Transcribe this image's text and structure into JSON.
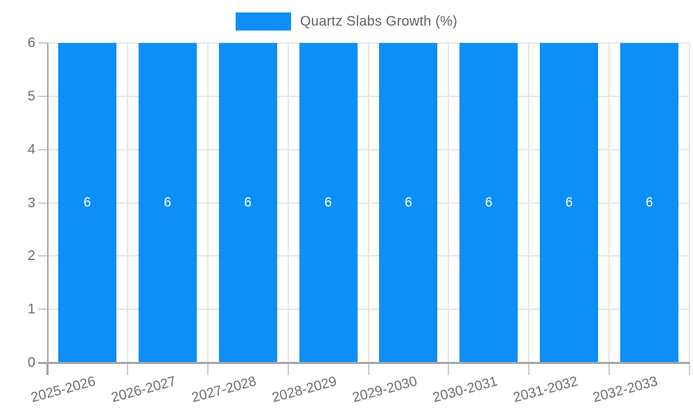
{
  "legend": {
    "label": "Quartz Slabs Growth (%)"
  },
  "colors": {
    "bar": "#0d8ff7",
    "bar_label": "#ffffff",
    "title_text": "#636363",
    "axis_text": "#6f6f6f",
    "grid": "#e6e6e6",
    "tick": "#cccccc",
    "axis_line": "#a6a6a6"
  },
  "chart_data": {
    "type": "bar",
    "title": "Quartz Slabs Growth (%)",
    "categories": [
      "2025-2026",
      "2026-2027",
      "2027-2028",
      "2028-2029",
      "2029-2030",
      "2030-2031",
      "2031-2032",
      "2032-2033"
    ],
    "values": [
      6,
      6,
      6,
      6,
      6,
      6,
      6,
      6
    ],
    "bar_value_labels": [
      "6",
      "6",
      "6",
      "6",
      "6",
      "6",
      "6",
      "6"
    ],
    "xlabel": "",
    "ylabel": "",
    "ylim": [
      0,
      6
    ],
    "y_ticks": [
      0,
      1,
      2,
      3,
      4,
      5,
      6
    ],
    "grid": "horizontal and vertical light gray",
    "legend_position": "top-center"
  }
}
